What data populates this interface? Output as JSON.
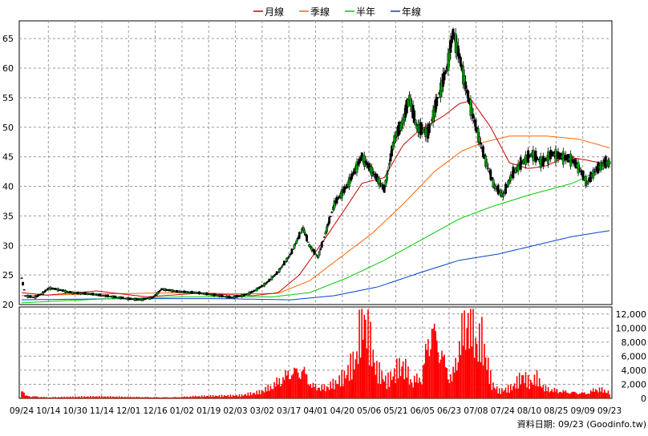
{
  "chart_data": {
    "type": "candlestick",
    "legend": {
      "placement": "top-center",
      "items": [
        {
          "name": "月線",
          "color": "#cc0000"
        },
        {
          "name": "季線",
          "color": "#ff6600"
        },
        {
          "name": "半年",
          "color": "#00cc00"
        },
        {
          "name": "年線",
          "color": "#0044cc"
        }
      ]
    },
    "price_axis": {
      "ylim": [
        20,
        68
      ],
      "ticks": [
        "20",
        "25",
        "30",
        "35",
        "40",
        "45",
        "50",
        "55",
        "60",
        "65"
      ],
      "grid": true,
      "side": "left"
    },
    "volume_axis": {
      "ylim": [
        0,
        13000
      ],
      "ticks": [
        "0",
        "2,000",
        "4,000",
        "6,000",
        "8,000",
        "10,000",
        "12,000"
      ],
      "side": "right"
    },
    "x_labels": [
      "09/24",
      "10/14",
      "10/30",
      "11/14",
      "12/01",
      "12/16",
      "01/02",
      "01/19",
      "02/03",
      "03/02",
      "03/17",
      "04/01",
      "04/20",
      "05/06",
      "05/21",
      "06/05",
      "06/23",
      "07/08",
      "07/24",
      "08/10",
      "08/25",
      "09/09",
      "09/23"
    ],
    "footer": "資料日期: 09/23  (Goodinfo.tw)",
    "colors": {
      "up_candle": "#00aa00",
      "down_candle": "#000000",
      "volume_bar": "#ff0000",
      "grid": "#999999"
    },
    "price_path": [
      [
        0,
        24.5
      ],
      [
        3,
        21.5
      ],
      [
        10,
        21.2
      ],
      [
        16,
        21.8
      ],
      [
        22,
        22.8
      ],
      [
        30,
        22.5
      ],
      [
        40,
        22.0
      ],
      [
        55,
        21.8
      ],
      [
        70,
        21.4
      ],
      [
        85,
        21.0
      ],
      [
        95,
        20.8
      ],
      [
        105,
        21.2
      ],
      [
        112,
        22.6
      ],
      [
        125,
        22.2
      ],
      [
        140,
        22.0
      ],
      [
        155,
        21.6
      ],
      [
        168,
        21.2
      ],
      [
        178,
        21.6
      ],
      [
        185,
        22.2
      ],
      [
        195,
        23.5
      ],
      [
        205,
        25.5
      ],
      [
        215,
        28.5
      ],
      [
        225,
        33.0
      ],
      [
        230,
        30.0
      ],
      [
        237,
        28.0
      ],
      [
        245,
        33.5
      ],
      [
        250,
        37.0
      ],
      [
        260,
        40.0
      ],
      [
        272,
        45.0
      ],
      [
        282,
        42.0
      ],
      [
        290,
        39.5
      ],
      [
        298,
        48.0
      ],
      [
        305,
        51.0
      ],
      [
        310,
        55.0
      ],
      [
        316,
        50.0
      ],
      [
        325,
        49.0
      ],
      [
        333,
        55.0
      ],
      [
        340,
        60.0
      ],
      [
        345,
        66.0
      ],
      [
        350,
        62.0
      ],
      [
        356,
        56.0
      ],
      [
        362,
        51.0
      ],
      [
        370,
        45.0
      ],
      [
        378,
        40.0
      ],
      [
        385,
        38.5
      ],
      [
        392,
        42.0
      ],
      [
        400,
        44.0
      ],
      [
        408,
        45.5
      ],
      [
        416,
        44.0
      ],
      [
        424,
        45.5
      ],
      [
        432,
        45.0
      ],
      [
        440,
        44.5
      ],
      [
        446,
        43.0
      ],
      [
        452,
        40.5
      ],
      [
        458,
        42.5
      ],
      [
        466,
        44.0
      ],
      [
        470,
        44.0
      ]
    ],
    "ma_month": [
      [
        0,
        22.0
      ],
      [
        20,
        21.6
      ],
      [
        60,
        22.3
      ],
      [
        100,
        21.3
      ],
      [
        140,
        21.9
      ],
      [
        185,
        21.5
      ],
      [
        205,
        22.0
      ],
      [
        222,
        25.0
      ],
      [
        242,
        31.0
      ],
      [
        258,
        36.0
      ],
      [
        272,
        40.5
      ],
      [
        290,
        41.5
      ],
      [
        305,
        47.0
      ],
      [
        318,
        49.5
      ],
      [
        338,
        52.0
      ],
      [
        350,
        54.0
      ],
      [
        360,
        54.5
      ],
      [
        375,
        50.0
      ],
      [
        390,
        44.0
      ],
      [
        405,
        43.0
      ],
      [
        420,
        43.5
      ],
      [
        435,
        45.0
      ],
      [
        450,
        44.5
      ],
      [
        462,
        44.0
      ],
      [
        470,
        44.0
      ]
    ],
    "ma_quarter": [
      [
        0,
        21.5
      ],
      [
        60,
        21.8
      ],
      [
        130,
        22.0
      ],
      [
        180,
        21.8
      ],
      [
        205,
        21.9
      ],
      [
        230,
        24.0
      ],
      [
        255,
        28.0
      ],
      [
        280,
        32.0
      ],
      [
        305,
        37.0
      ],
      [
        330,
        42.5
      ],
      [
        352,
        46.0
      ],
      [
        370,
        47.5
      ],
      [
        390,
        48.5
      ],
      [
        420,
        48.5
      ],
      [
        445,
        48.0
      ],
      [
        462,
        47.0
      ],
      [
        470,
        46.5
      ]
    ],
    "ma_half": [
      [
        0,
        20.3
      ],
      [
        60,
        20.9
      ],
      [
        130,
        21.3
      ],
      [
        200,
        21.3
      ],
      [
        230,
        22.0
      ],
      [
        260,
        24.5
      ],
      [
        290,
        27.5
      ],
      [
        320,
        31.0
      ],
      [
        350,
        34.5
      ],
      [
        375,
        36.5
      ],
      [
        405,
        38.5
      ],
      [
        440,
        40.5
      ],
      [
        470,
        43.5
      ]
    ],
    "ma_year": [
      [
        0,
        20.8
      ],
      [
        80,
        21.0
      ],
      [
        160,
        21.0
      ],
      [
        215,
        20.8
      ],
      [
        250,
        21.5
      ],
      [
        285,
        23.0
      ],
      [
        320,
        25.5
      ],
      [
        350,
        27.5
      ],
      [
        380,
        28.5
      ],
      [
        410,
        30.0
      ],
      [
        440,
        31.5
      ],
      [
        470,
        32.5
      ]
    ],
    "volume_path": [
      [
        0,
        1800
      ],
      [
        3,
        400
      ],
      [
        20,
        150
      ],
      [
        60,
        250
      ],
      [
        120,
        150
      ],
      [
        140,
        300
      ],
      [
        175,
        400
      ],
      [
        190,
        900
      ],
      [
        200,
        1800
      ],
      [
        215,
        4200
      ],
      [
        225,
        4600
      ],
      [
        232,
        2000
      ],
      [
        242,
        1600
      ],
      [
        250,
        2200
      ],
      [
        258,
        3200
      ],
      [
        268,
        5800
      ],
      [
        272,
        12000
      ],
      [
        278,
        8500
      ],
      [
        283,
        4200
      ],
      [
        292,
        2400
      ],
      [
        300,
        4200
      ],
      [
        305,
        5200
      ],
      [
        312,
        2600
      ],
      [
        320,
        3400
      ],
      [
        327,
        11800
      ],
      [
        333,
        9000
      ],
      [
        338,
        5800
      ],
      [
        344,
        3000
      ],
      [
        352,
        9800
      ],
      [
        358,
        12500
      ],
      [
        364,
        7800
      ],
      [
        368,
        8500
      ],
      [
        376,
        2000
      ],
      [
        382,
        1000
      ],
      [
        392,
        1500
      ],
      [
        401,
        3200
      ],
      [
        406,
        2200
      ],
      [
        412,
        3000
      ],
      [
        418,
        1500
      ],
      [
        428,
        1200
      ],
      [
        438,
        1000
      ],
      [
        452,
        800
      ],
      [
        460,
        1500
      ],
      [
        470,
        900
      ]
    ]
  }
}
